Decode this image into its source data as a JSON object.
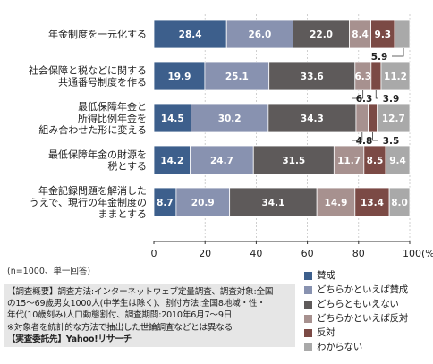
{
  "chart_data": {
    "type": "bar",
    "stacked": "horizontal-100",
    "categories": [
      [
        "年金制度を一元化する"
      ],
      [
        "社会保障と税などに関する",
        "共通番号制度を作る"
      ],
      [
        "最低保障年金と",
        "所得比例年金を",
        "組み合わせた形に変える"
      ],
      [
        "最低保障年金の財源を",
        "税とする"
      ],
      [
        "年金記録問題を解消した",
        "うえで、現行の年金制度の",
        "ままとする"
      ]
    ],
    "series": [
      {
        "name": "賛成",
        "color": "#3d5f8c",
        "values": [
          28.4,
          19.9,
          14.5,
          14.2,
          8.7
        ]
      },
      {
        "name": "どちらかといえば賛成",
        "color": "#8892b0",
        "values": [
          26.0,
          25.1,
          30.2,
          24.7,
          20.9
        ]
      },
      {
        "name": "どちらともいえない",
        "color": "#5e5a5a",
        "values": [
          22.0,
          33.6,
          34.3,
          31.5,
          34.1
        ]
      },
      {
        "name": "どちらかといえば反対",
        "color": "#a7918f",
        "values": [
          8.4,
          6.3,
          4.8,
          11.7,
          14.9
        ]
      },
      {
        "name": "反対",
        "color": "#7b4a45",
        "values": [
          9.3,
          3.9,
          3.5,
          8.5,
          13.4
        ]
      },
      {
        "name": "わからない",
        "color": "#a9a9a9",
        "values": [
          5.9,
          11.2,
          12.7,
          9.4,
          8.0
        ]
      }
    ],
    "xlim": [
      0,
      100
    ],
    "xticks": [
      "0",
      "20",
      "40",
      "60",
      "80",
      "100(%)"
    ],
    "callouts": [
      "5.9",
      "6.3",
      "3.9",
      "4.8",
      "3.5"
    ]
  },
  "sample_note": "(n=1000、単一回答)",
  "notes": {
    "line1": "【調査概要】調査方法:インターネットウェブ定量調査、調査対象:全国",
    "line2": "の15～69歳男女1000人(中学生は除く)、割付方法:全国8地域・性・",
    "line3": "年代(10歳刻み)人口動態割付、調査期間:2010年6月7～9日",
    "line4": "※対象者を統計的な方法で抽出した世論調査などとは異なる",
    "source": "【実査委託先】Yahoo!リサーチ"
  }
}
